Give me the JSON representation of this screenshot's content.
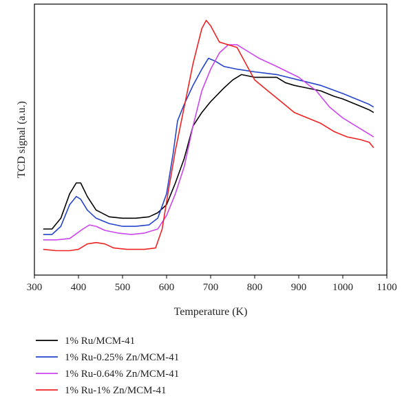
{
  "chart_data": {
    "type": "line",
    "title": "",
    "xlabel": "Temperature (K)",
    "ylabel": "TCD signal (a.u.)",
    "xlim": [
      300,
      1100
    ],
    "ylim": [
      0,
      100
    ],
    "xticks": [
      300,
      400,
      500,
      600,
      700,
      800,
      900,
      1000,
      1100
    ],
    "yticks_shown": false,
    "grid": false,
    "legend_position": "below-plot",
    "series": [
      {
        "name": "1% Ru/MCM-41",
        "color": "#000000",
        "points": [
          [
            320,
            17
          ],
          [
            340,
            17
          ],
          [
            360,
            21
          ],
          [
            380,
            30
          ],
          [
            395,
            34
          ],
          [
            405,
            34
          ],
          [
            420,
            29
          ],
          [
            440,
            24
          ],
          [
            470,
            21.5
          ],
          [
            500,
            21
          ],
          [
            530,
            21
          ],
          [
            560,
            21.5
          ],
          [
            580,
            23
          ],
          [
            600,
            26
          ],
          [
            620,
            34
          ],
          [
            640,
            43
          ],
          [
            660,
            55
          ],
          [
            680,
            60
          ],
          [
            700,
            64
          ],
          [
            730,
            69
          ],
          [
            750,
            72
          ],
          [
            770,
            74
          ],
          [
            800,
            73
          ],
          [
            830,
            73
          ],
          [
            850,
            73
          ],
          [
            870,
            71
          ],
          [
            890,
            70
          ],
          [
            920,
            69
          ],
          [
            950,
            68
          ],
          [
            980,
            66
          ],
          [
            1000,
            65
          ],
          [
            1030,
            63
          ],
          [
            1060,
            61
          ],
          [
            1070,
            60
          ]
        ]
      },
      {
        "name": "1% Ru-0.25% Zn/MCM-41",
        "color": "#2244cc",
        "points": [
          [
            320,
            15
          ],
          [
            340,
            15
          ],
          [
            360,
            18
          ],
          [
            380,
            26
          ],
          [
            395,
            29
          ],
          [
            405,
            28
          ],
          [
            420,
            24
          ],
          [
            440,
            21
          ],
          [
            470,
            19
          ],
          [
            500,
            18
          ],
          [
            530,
            18
          ],
          [
            560,
            18.5
          ],
          [
            580,
            21
          ],
          [
            600,
            30
          ],
          [
            615,
            45
          ],
          [
            625,
            57
          ],
          [
            640,
            63
          ],
          [
            660,
            70
          ],
          [
            680,
            76
          ],
          [
            695,
            80
          ],
          [
            710,
            79
          ],
          [
            730,
            77
          ],
          [
            760,
            76
          ],
          [
            800,
            75
          ],
          [
            850,
            74
          ],
          [
            900,
            72
          ],
          [
            950,
            70
          ],
          [
            1000,
            67
          ],
          [
            1030,
            65
          ],
          [
            1060,
            63
          ],
          [
            1070,
            62
          ]
        ]
      },
      {
        "name": "1% Ru-0.64% Zn/MCM-41",
        "color": "#cc44ee",
        "points": [
          [
            320,
            13
          ],
          [
            350,
            13
          ],
          [
            380,
            13.5
          ],
          [
            410,
            17
          ],
          [
            425,
            18.5
          ],
          [
            440,
            18
          ],
          [
            460,
            16.5
          ],
          [
            490,
            15.5
          ],
          [
            520,
            15
          ],
          [
            550,
            15.5
          ],
          [
            580,
            17
          ],
          [
            600,
            22
          ],
          [
            620,
            30
          ],
          [
            640,
            40
          ],
          [
            660,
            55
          ],
          [
            680,
            68
          ],
          [
            700,
            76
          ],
          [
            720,
            82
          ],
          [
            740,
            85
          ],
          [
            760,
            85
          ],
          [
            780,
            83
          ],
          [
            810,
            80
          ],
          [
            850,
            77
          ],
          [
            900,
            73
          ],
          [
            940,
            68
          ],
          [
            970,
            62
          ],
          [
            1000,
            58
          ],
          [
            1030,
            55
          ],
          [
            1060,
            52
          ],
          [
            1070,
            51
          ]
        ]
      },
      {
        "name": "1% Ru-1% Zn/MCM-41",
        "color": "#ee2222",
        "points": [
          [
            320,
            9.5
          ],
          [
            350,
            9
          ],
          [
            380,
            9
          ],
          [
            400,
            9.5
          ],
          [
            420,
            11.5
          ],
          [
            440,
            12
          ],
          [
            460,
            11.5
          ],
          [
            480,
            10
          ],
          [
            510,
            9.5
          ],
          [
            550,
            9.5
          ],
          [
            575,
            10
          ],
          [
            590,
            17
          ],
          [
            605,
            32
          ],
          [
            620,
            46
          ],
          [
            640,
            62
          ],
          [
            660,
            78
          ],
          [
            680,
            91
          ],
          [
            690,
            94
          ],
          [
            700,
            92
          ],
          [
            720,
            86
          ],
          [
            740,
            85
          ],
          [
            760,
            84
          ],
          [
            780,
            78
          ],
          [
            800,
            72
          ],
          [
            830,
            68
          ],
          [
            860,
            64
          ],
          [
            890,
            60
          ],
          [
            920,
            58
          ],
          [
            950,
            56
          ],
          [
            980,
            53
          ],
          [
            1010,
            51
          ],
          [
            1040,
            50
          ],
          [
            1060,
            49
          ],
          [
            1070,
            47
          ]
        ]
      }
    ]
  }
}
